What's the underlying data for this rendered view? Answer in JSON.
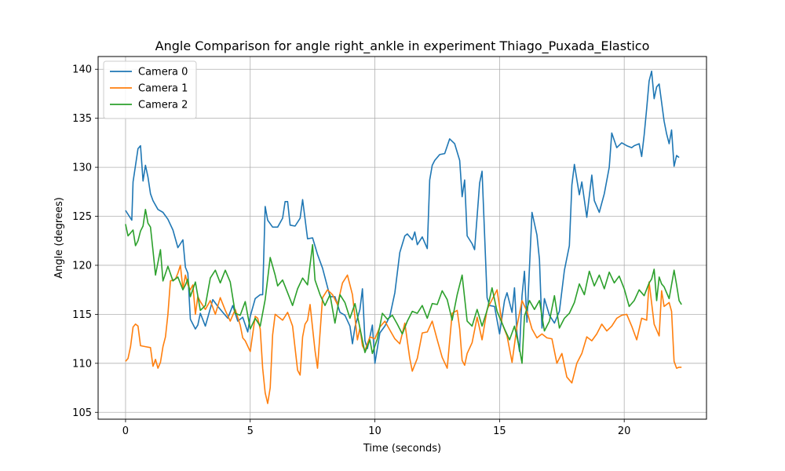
{
  "chart_data": {
    "type": "line",
    "title": "Angle Comparison for angle right_ankle in experiment Thiago_Puxada_Elastico",
    "xlabel": "Time (seconds)",
    "ylabel": "Angle (degrees)",
    "xlim": [
      -1.1,
      23.3
    ],
    "ylim": [
      104.3,
      141.3
    ],
    "xticks": [
      0,
      5,
      10,
      15,
      20
    ],
    "yticks": [
      105,
      110,
      115,
      120,
      125,
      130,
      135,
      140
    ],
    "grid": true,
    "legend_position": "top-left",
    "series": [
      {
        "name": "Camera 0",
        "color": "#1f77b4",
        "x": [
          0,
          0.2,
          0.25,
          0.3,
          0.5,
          0.6,
          0.7,
          0.8,
          0.9,
          1.0,
          1.1,
          1.3,
          1.5,
          1.7,
          1.9,
          2.1,
          2.3,
          2.4,
          2.5,
          2.6,
          2.8,
          2.9,
          3.0,
          3.2,
          3.5,
          3.7,
          3.9,
          4.1,
          4.3,
          4.5,
          4.7,
          4.9,
          5.0,
          5.2,
          5.4,
          5.5,
          5.6,
          5.7,
          5.9,
          6.1,
          6.3,
          6.4,
          6.5,
          6.6,
          6.8,
          7.0,
          7.1,
          7.3,
          7.5,
          7.7,
          7.9,
          8.2,
          8.4,
          8.6,
          8.8,
          9.0,
          9.1,
          9.2,
          9.4,
          9.5,
          9.6,
          9.7,
          9.9,
          10.0,
          10.2,
          10.4,
          10.6,
          10.8,
          11.0,
          11.2,
          11.3,
          11.5,
          11.6,
          11.7,
          11.9,
          12.1,
          12.2,
          12.3,
          12.4,
          12.6,
          12.8,
          13.0,
          13.2,
          13.4,
          13.5,
          13.6,
          13.7,
          13.9,
          14.0,
          14.2,
          14.3,
          14.5,
          14.6,
          14.8,
          15.0,
          15.2,
          15.3,
          15.5,
          15.6,
          15.7,
          15.8,
          15.9,
          16.0,
          16.1,
          16.3,
          16.5,
          16.6,
          16.7,
          16.8,
          17.0,
          17.2,
          17.4,
          17.6,
          17.8,
          17.9,
          18.0,
          18.2,
          18.3,
          18.5,
          18.7,
          18.8,
          19.0,
          19.2,
          19.4,
          19.5,
          19.7,
          19.9,
          20.1,
          20.3,
          20.4,
          20.6,
          20.7,
          20.8,
          20.9,
          21.0,
          21.1,
          21.2,
          21.3,
          21.4,
          21.6,
          21.7,
          21.8,
          21.9,
          22.0,
          22.1,
          22.2
        ],
        "y": [
          125.6,
          124.8,
          124.6,
          128.5,
          131.9,
          132.2,
          128.6,
          130.2,
          129.0,
          127.3,
          126.6,
          125.7,
          125.4,
          124.7,
          123.6,
          121.8,
          122.6,
          119.8,
          119.2,
          114.5,
          113.5,
          113.9,
          115.1,
          113.8,
          116.5,
          115.8,
          115.2,
          114.6,
          115.9,
          114.3,
          114.7,
          113.2,
          114.8,
          116.6,
          117.0,
          117.0,
          126.0,
          124.6,
          123.9,
          123.9,
          124.8,
          126.5,
          126.5,
          124.1,
          124.0,
          124.8,
          126.7,
          122.7,
          122.8,
          121.1,
          119.7,
          116.8,
          116.8,
          115.2,
          114.9,
          113.8,
          112.0,
          113.7,
          115.5,
          117.6,
          112.3,
          111.5,
          113.9,
          110.0,
          113.1,
          113.8,
          114.8,
          117.2,
          121.3,
          123.0,
          123.2,
          122.6,
          123.4,
          122.1,
          122.9,
          121.7,
          128.7,
          130.2,
          130.7,
          131.3,
          131.4,
          132.9,
          132.4,
          130.7,
          127.0,
          128.7,
          123.0,
          122.2,
          121.6,
          128.4,
          129.6,
          116.7,
          115.9,
          115.8,
          113.0,
          116.4,
          117.2,
          115.2,
          117.7,
          113.0,
          111.2,
          116.9,
          119.4,
          114.2,
          125.4,
          123.1,
          120.6,
          113.6,
          116.6,
          114.9,
          114.1,
          115.3,
          119.5,
          122.0,
          128.2,
          130.3,
          127.2,
          128.5,
          124.9,
          129.2,
          126.6,
          125.4,
          127.3,
          130.0,
          133.5,
          132.0,
          132.5,
          132.2,
          132.0,
          132.2,
          132.4,
          131.1,
          133.3,
          136.0,
          138.8,
          139.8,
          137.0,
          138.2,
          138.5,
          134.7,
          133.4,
          132.4,
          133.8,
          130.1,
          131.2,
          131.0
        ]
      },
      {
        "name": "Camera 1",
        "color": "#ff7f0e",
        "x": [
          0,
          0.1,
          0.2,
          0.3,
          0.4,
          0.5,
          0.6,
          0.8,
          1.0,
          1.1,
          1.2,
          1.3,
          1.4,
          1.5,
          1.6,
          1.7,
          1.8,
          2.0,
          2.1,
          2.2,
          2.3,
          2.4,
          2.5,
          2.6,
          2.7,
          2.8,
          2.9,
          3.0,
          3.2,
          3.4,
          3.6,
          3.8,
          4.0,
          4.2,
          4.4,
          4.6,
          4.7,
          4.8,
          5.0,
          5.2,
          5.3,
          5.4,
          5.5,
          5.6,
          5.7,
          5.8,
          5.9,
          6.0,
          6.1,
          6.3,
          6.5,
          6.7,
          6.9,
          7.0,
          7.1,
          7.2,
          7.3,
          7.4,
          7.5,
          7.6,
          7.7,
          7.9,
          8.1,
          8.3,
          8.5,
          8.7,
          8.9,
          9.1,
          9.3,
          9.4,
          9.5,
          9.6,
          9.8,
          10.0,
          10.2,
          10.4,
          10.6,
          10.8,
          11.0,
          11.2,
          11.4,
          11.5,
          11.7,
          11.9,
          12.1,
          12.3,
          12.5,
          12.7,
          12.9,
          13.1,
          13.3,
          13.4,
          13.5,
          13.6,
          13.7,
          13.9,
          14.1,
          14.3,
          14.5,
          14.7,
          14.9,
          15.1,
          15.3,
          15.5,
          15.7,
          15.9,
          16.1,
          16.3,
          16.5,
          16.7,
          16.9,
          17.1,
          17.3,
          17.5,
          17.7,
          17.9,
          18.1,
          18.3,
          18.5,
          18.7,
          18.9,
          19.1,
          19.3,
          19.5,
          19.7,
          19.9,
          20.1,
          20.3,
          20.5,
          20.7,
          20.9,
          21.0,
          21.2,
          21.4,
          21.5,
          21.6,
          21.8,
          21.9,
          22.0,
          22.1,
          22.2,
          22.3
        ],
        "y": [
          110.2,
          110.5,
          111.7,
          113.7,
          114.0,
          113.8,
          111.8,
          111.7,
          111.6,
          109.7,
          110.4,
          109.5,
          110.1,
          111.7,
          112.7,
          115.0,
          118.4,
          118.6,
          119.2,
          120.0,
          117.6,
          119.0,
          118.0,
          117.5,
          118.0,
          115.0,
          116.8,
          116.3,
          115.5,
          116.4,
          115.0,
          116.7,
          115.4,
          114.3,
          115.5,
          113.9,
          112.6,
          112.3,
          111.2,
          114.8,
          114.6,
          113.5,
          109.5,
          107.0,
          105.9,
          107.5,
          112.9,
          115.0,
          114.8,
          114.4,
          115.2,
          113.8,
          109.3,
          108.8,
          112.7,
          114.0,
          114.4,
          116.0,
          113.6,
          111.3,
          109.5,
          116.7,
          117.5,
          117.0,
          116.0,
          118.2,
          119.0,
          117.0,
          112.4,
          113.6,
          111.8,
          111.3,
          112.7,
          112.5,
          113.7,
          114.3,
          113.4,
          112.5,
          112.0,
          114.1,
          110.5,
          109.2,
          110.5,
          113.1,
          113.2,
          114.3,
          112.4,
          110.6,
          109.5,
          115.1,
          115.4,
          113.5,
          110.3,
          109.8,
          111.0,
          112.1,
          114.7,
          112.4,
          115.5,
          116.5,
          117.5,
          114.1,
          112.8,
          110.1,
          113.8,
          116.4,
          115.3,
          113.5,
          112.6,
          113.0,
          112.6,
          112.5,
          110.0,
          111.0,
          108.6,
          108.0,
          110.0,
          111.0,
          112.7,
          112.3,
          113.0,
          114.0,
          113.3,
          113.8,
          114.6,
          114.9,
          115.0,
          113.8,
          112.4,
          114.6,
          114.4,
          118.3,
          114.0,
          112.8,
          117.4,
          115.8,
          116.2,
          115.3,
          110.2,
          109.5,
          109.6,
          109.6
        ]
      },
      {
        "name": "Camera 2",
        "color": "#2ca02c",
        "x": [
          0,
          0.1,
          0.3,
          0.4,
          0.5,
          0.6,
          0.7,
          0.8,
          0.9,
          1.0,
          1.1,
          1.2,
          1.4,
          1.5,
          1.7,
          1.9,
          2.1,
          2.3,
          2.4,
          2.5,
          2.6,
          2.8,
          3.0,
          3.2,
          3.4,
          3.6,
          3.8,
          4.0,
          4.2,
          4.4,
          4.6,
          4.8,
          5.0,
          5.2,
          5.4,
          5.6,
          5.8,
          6.0,
          6.1,
          6.3,
          6.5,
          6.7,
          6.9,
          7.1,
          7.3,
          7.5,
          7.6,
          7.8,
          8.0,
          8.2,
          8.4,
          8.6,
          8.8,
          9.0,
          9.2,
          9.4,
          9.6,
          9.8,
          9.9,
          10.1,
          10.3,
          10.5,
          10.7,
          10.9,
          11.1,
          11.3,
          11.5,
          11.7,
          11.9,
          12.1,
          12.3,
          12.5,
          12.7,
          12.9,
          13.1,
          13.3,
          13.5,
          13.7,
          13.9,
          14.1,
          14.3,
          14.5,
          14.7,
          14.9,
          15.1,
          15.2,
          15.4,
          15.6,
          15.8,
          15.9,
          16.0,
          16.2,
          16.4,
          16.6,
          16.8,
          17.0,
          17.2,
          17.4,
          17.6,
          17.8,
          18.0,
          18.2,
          18.4,
          18.6,
          18.8,
          19.0,
          19.2,
          19.4,
          19.6,
          19.8,
          20.0,
          20.2,
          20.4,
          20.6,
          20.8,
          21.0,
          21.1,
          21.2,
          21.3,
          21.4,
          21.5,
          21.6,
          21.8,
          22.0,
          22.1,
          22.2,
          22.3
        ],
        "y": [
          124.2,
          123.0,
          123.6,
          122.0,
          122.5,
          123.5,
          124.0,
          125.7,
          124.3,
          123.9,
          121.5,
          119.0,
          121.6,
          118.4,
          119.9,
          118.4,
          118.8,
          117.5,
          118.0,
          118.6,
          116.8,
          118.3,
          115.4,
          115.9,
          118.7,
          119.5,
          118.2,
          119.5,
          118.3,
          115.1,
          114.9,
          116.3,
          113.5,
          114.6,
          113.8,
          116.5,
          120.8,
          119.0,
          117.9,
          118.5,
          117.2,
          115.9,
          117.6,
          118.7,
          118.0,
          122.1,
          118.5,
          117.0,
          115.9,
          117.0,
          114.1,
          117.0,
          116.2,
          114.6,
          116.1,
          113.6,
          111.1,
          112.4,
          111.0,
          112.5,
          115.1,
          114.5,
          114.9,
          114.0,
          113.0,
          114.3,
          115.3,
          115.1,
          115.9,
          114.6,
          116.1,
          116.0,
          117.4,
          116.5,
          114.4,
          117.0,
          119.0,
          114.3,
          113.8,
          115.5,
          113.8,
          115.4,
          117.7,
          115.3,
          114.1,
          113.5,
          112.4,
          113.8,
          111.5,
          110.0,
          114.8,
          116.4,
          115.5,
          116.4,
          113.3,
          114.3,
          116.9,
          113.6,
          114.6,
          115.1,
          116.2,
          118.1,
          117.0,
          119.4,
          117.9,
          119.0,
          117.6,
          119.3,
          118.2,
          118.9,
          117.6,
          115.8,
          116.4,
          117.5,
          116.9,
          118.2,
          118.6,
          119.6,
          116.4,
          118.8,
          118.1,
          117.8,
          116.6,
          119.5,
          118.0,
          116.4,
          116.0
        ]
      }
    ]
  }
}
